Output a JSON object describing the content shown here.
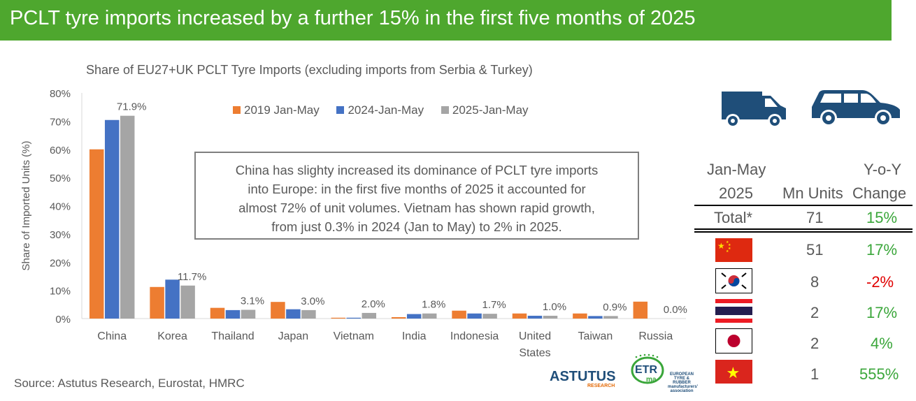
{
  "banner": {
    "title": "PCLT tyre imports increased by a further 15% in the first five months of 2025"
  },
  "source": "Source: Astutus Research, Eurostat, HMRC",
  "callout": {
    "lines": [
      "China has slighty increased its dominance of PCLT tyre imports",
      "into Europe: in the first five months of 2025 it accounted for",
      "almost 72% of unit volumes. Vietnam has shown rapid growth,",
      "from just 0.3% in 2024 (Jan to May)  to 2% in 2025."
    ]
  },
  "logos": {
    "astutus": "ASTUTUS",
    "astutus_sub": "RESEARCH",
    "etrma_mark": "ETR ma",
    "etrma_text": "EUROPEAN TYRE & RUBBER manufacturers' association"
  },
  "colors": {
    "banner": "#4ea72e",
    "series_2019": "#ed7d31",
    "series_2024": "#4472c4",
    "series_2025": "#a5a5a5",
    "positive": "#3aa63a",
    "negative": "#e00000",
    "icon": "#1f4e79"
  },
  "icons": [
    "van-icon",
    "car-icon"
  ],
  "chart_data": {
    "type": "bar",
    "title": "Share of EU27+UK PCLT Tyre Imports (excluding imports from Serbia & Turkey)",
    "xlabel": "",
    "ylabel": "Share of Imported Units (%)",
    "ylim": [
      0,
      80
    ],
    "yticks": [
      "0%",
      "10%",
      "20%",
      "30%",
      "40%",
      "50%",
      "60%",
      "70%",
      "80%"
    ],
    "yunit": "%",
    "grid": false,
    "legend_position": "top",
    "categories": [
      "China",
      "Korea",
      "Thailand",
      "Japan",
      "Vietnam",
      "India",
      "Indonesia",
      "United States",
      "Taiwan",
      "Russia"
    ],
    "series": [
      {
        "name": "2019 Jan-May",
        "values": [
          60,
          11.2,
          3.8,
          5.9,
          0.3,
          0.5,
          2.8,
          1.8,
          1.8,
          6.0
        ]
      },
      {
        "name": "2024-Jan-May",
        "values": [
          70.4,
          13.8,
          3.0,
          3.3,
          0.3,
          1.6,
          1.8,
          1.0,
          0.9,
          0.0
        ]
      },
      {
        "name": "2025-Jan-May",
        "values": [
          71.9,
          11.7,
          3.1,
          3.0,
          2.0,
          1.8,
          1.7,
          1.0,
          0.9,
          0.0
        ]
      }
    ],
    "data_labels": [
      "71.9%",
      "11.7%",
      "3.1%",
      "3.0%",
      "2.0%",
      "1.8%",
      "1.7%",
      "1.0%",
      "0.9%",
      "0.0%"
    ]
  },
  "table": {
    "header": {
      "col1_line1": "Jan-May",
      "col1_line2": "2025",
      "col2": "Mn Units",
      "col3_line1": "Y-o-Y",
      "col3_line2": "Change"
    },
    "total": {
      "label": "Total*",
      "units": "71",
      "change": "15%"
    },
    "rows": [
      {
        "flag": "china-flag",
        "units": "51",
        "change": "17%",
        "trend": "up"
      },
      {
        "flag": "korea-flag",
        "units": "8",
        "change": "-2%",
        "trend": "down"
      },
      {
        "flag": "thailand-flag",
        "units": "2",
        "change": "17%",
        "trend": "up"
      },
      {
        "flag": "japan-flag",
        "units": "2",
        "change": "4%",
        "trend": "up"
      },
      {
        "flag": "vietnam-flag",
        "units": "1",
        "change": "555%",
        "trend": "up"
      }
    ]
  }
}
